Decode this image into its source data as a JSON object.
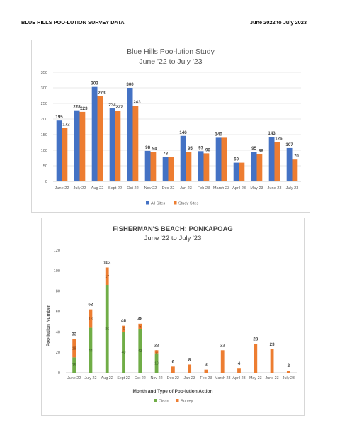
{
  "header": {
    "left": "BLUE HILLS POO-LUTION SURVEY DATA",
    "right": "June 2022 to July 2023"
  },
  "chart_data": [
    {
      "type": "bar",
      "title": "Blue Hills Poo-lution Study",
      "subtitle": "June '22 to July '23",
      "xlabel": "",
      "ylabel": "",
      "ylim": [
        0,
        350
      ],
      "yticks": [
        "0",
        "50",
        "100",
        "150",
        "200",
        "250",
        "300",
        "350"
      ],
      "categories": [
        "June 22",
        "July 22",
        "Aug 22",
        "Sept 22",
        "Oct 22",
        "Nov 22",
        "Dec 22",
        "Jan 23",
        "Feb 23",
        "March 23",
        "April 23",
        "May 23",
        "June 23",
        "July 23"
      ],
      "series": [
        {
          "name": "All Sites",
          "color": "#4472C4",
          "values": [
            195,
            228,
            303,
            234,
            300,
            98,
            78,
            146,
            97,
            140,
            60,
            95,
            143,
            107
          ]
        },
        {
          "name": "Study Sites",
          "color": "#ED7D31",
          "values": [
            172,
            223,
            273,
            227,
            243,
            94,
            78,
            95,
            90,
            140,
            60,
            88,
            126,
            70
          ]
        }
      ],
      "grid": true,
      "legend_position": "bottom"
    },
    {
      "type": "bar",
      "stacked": true,
      "title": "FISHERMAN'S BEACH: PONKAPOAG",
      "subtitle": "June '22 to July '23",
      "xlabel": "Month and Type of Poo-lution Action",
      "ylabel": "Poo-lution Number",
      "ylim": [
        0,
        120
      ],
      "yticks": [
        "0",
        "20",
        "40",
        "60",
        "80",
        "100",
        "120"
      ],
      "categories": [
        "June 22",
        "July 22",
        "Aug 22",
        "Sept 22",
        "Oct 22",
        "Nov 22",
        "Dec 22",
        "Jan 23",
        "Feb 23",
        "March 23",
        "April 23",
        "May 23",
        "June 23",
        "July 23"
      ],
      "series": [
        {
          "name": "Clean",
          "color": "#70AD47",
          "values": [
            15,
            44,
            86,
            40,
            43,
            19,
            0,
            0,
            0,
            0,
            0,
            0,
            0,
            0
          ]
        },
        {
          "name": "Survey",
          "color": "#ED7D31",
          "values": [
            18,
            18,
            17,
            6,
            5,
            3,
            6,
            8,
            3,
            22,
            4,
            28,
            23,
            2
          ]
        }
      ],
      "segment_labels": {
        "Clean": [
          "15",
          "44",
          "86",
          "40",
          "43",
          "19",
          "",
          "",
          "",
          "",
          "",
          "",
          "",
          ""
        ],
        "Survey": [
          "18",
          "18",
          "17",
          "6",
          "5",
          "3",
          "",
          "",
          "",
          "",
          "",
          "",
          "",
          ""
        ]
      },
      "totals": [
        "33",
        "62",
        "103",
        "46",
        "48",
        "22",
        "6",
        "8",
        "3",
        "22",
        "4",
        "28",
        "23",
        "2"
      ],
      "grid": false,
      "legend_position": "bottom"
    }
  ]
}
